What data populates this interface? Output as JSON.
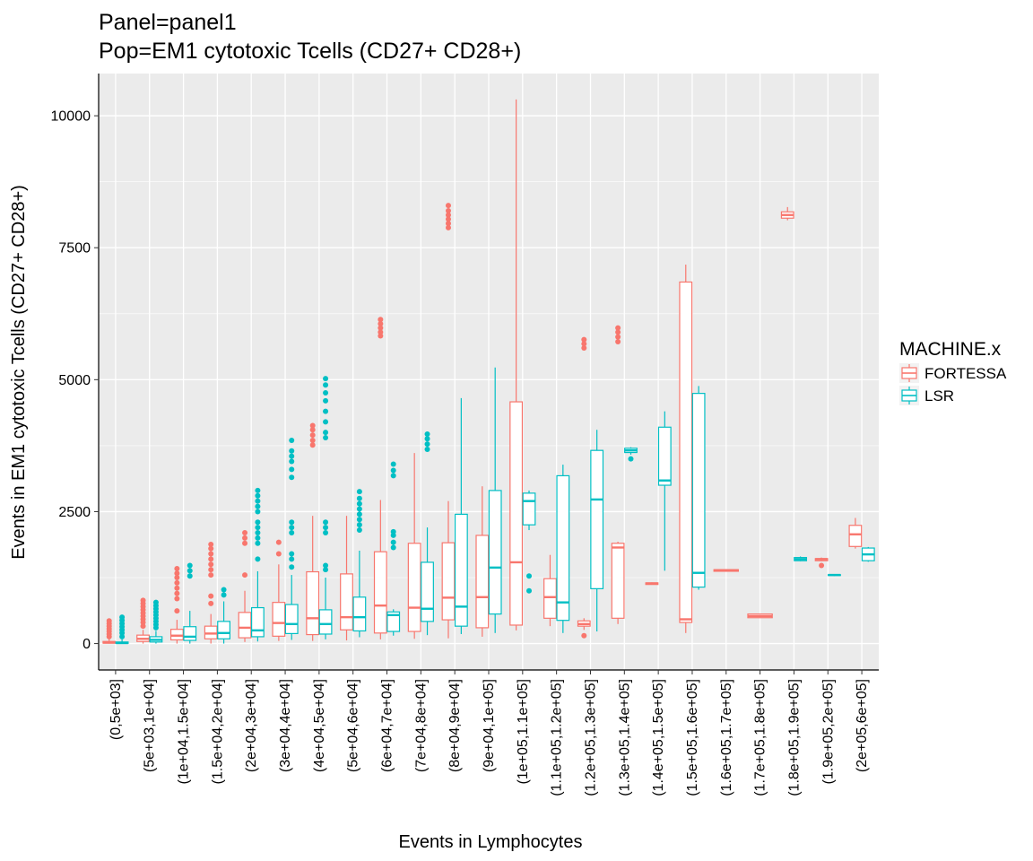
{
  "chart_data": {
    "type": "boxplot",
    "title_line1": "Panel=panel1",
    "title_line2": "Pop=EM1 cytotoxic Tcells (CD27+  CD28+)",
    "xlabel": "Events in Lymphocytes",
    "ylabel": "Events in EM1 cytotoxic Tcells (CD27+  CD28+)",
    "ylim": [
      -500,
      10800
    ],
    "yticks": [
      0,
      2500,
      5000,
      7500,
      10000
    ],
    "ytick_labels": [
      "0",
      "2500",
      "5000",
      "7500",
      "10000"
    ],
    "grid": true,
    "legend_position": "right",
    "legend_title": "MACHINE.x",
    "categories": [
      "(0,5e+03]",
      "(5e+03,1e+04]",
      "(1e+04,1.5e+04]",
      "(1.5e+04,2e+04]",
      "(2e+04,3e+04]",
      "(3e+04,4e+04]",
      "(4e+04,5e+04]",
      "(5e+04,6e+04]",
      "(6e+04,7e+04]",
      "(7e+04,8e+04]",
      "(8e+04,9e+04]",
      "(9e+04,1e+05]",
      "(1e+05,1.1e+05]",
      "(1.1e+05,1.2e+05]",
      "(1.2e+05,1.3e+05]",
      "(1.3e+05,1.4e+05]",
      "(1.4e+05,1.5e+05]",
      "(1.5e+05,1.6e+05]",
      "(1.6e+05,1.7e+05]",
      "(1.7e+05,1.8e+05]",
      "(1.8e+05,1.9e+05]",
      "(1.9e+05,2e+05]",
      "(2e+05,6e+05]"
    ],
    "series": [
      {
        "name": "FORTESSA",
        "color": "#F8766D",
        "boxes": [
          {
            "cat": 0,
            "min": 0,
            "q1": 8,
            "median": 18,
            "q3": 40,
            "max": 90,
            "outliers": [
              130,
              180,
              230,
              280,
              330,
              380,
              430
            ]
          },
          {
            "cat": 1,
            "min": 0,
            "q1": 40,
            "median": 90,
            "q3": 160,
            "max": 260,
            "outliers": [
              330,
              400,
              460,
              520,
              580,
              640,
              700,
              760,
              820
            ]
          },
          {
            "cat": 2,
            "min": 0,
            "q1": 70,
            "median": 150,
            "q3": 270,
            "max": 450,
            "outliers": [
              620,
              850,
              950,
              1050,
              1150,
              1250,
              1330,
              1420
            ]
          },
          {
            "cat": 3,
            "min": 0,
            "q1": 90,
            "median": 190,
            "q3": 330,
            "max": 560,
            "outliers": [
              760,
              900,
              1300,
              1400,
              1500,
              1600,
              1700,
              1800,
              1880
            ]
          },
          {
            "cat": 4,
            "min": 30,
            "q1": 110,
            "median": 300,
            "q3": 590,
            "max": 1000,
            "outliers": [
              1300,
              1900,
              2000,
              2100
            ]
          },
          {
            "cat": 5,
            "min": 50,
            "q1": 140,
            "median": 390,
            "q3": 780,
            "max": 1500,
            "outliers": [
              1700,
              1920
            ]
          },
          {
            "cat": 6,
            "min": 50,
            "q1": 170,
            "median": 480,
            "q3": 1360,
            "max": 2420,
            "outliers": [
              3760,
              3850,
              3950,
              4050,
              4130
            ]
          },
          {
            "cat": 7,
            "min": 60,
            "q1": 260,
            "median": 500,
            "q3": 1320,
            "max": 2420,
            "outliers": []
          },
          {
            "cat": 8,
            "min": 80,
            "q1": 200,
            "median": 720,
            "q3": 1740,
            "max": 2720,
            "outliers": [
              5830,
              5900,
              5980,
              6060,
              6140
            ]
          },
          {
            "cat": 9,
            "min": 90,
            "q1": 230,
            "median": 680,
            "q3": 1900,
            "max": 3610,
            "outliers": []
          },
          {
            "cat": 10,
            "min": 100,
            "q1": 450,
            "median": 870,
            "q3": 1910,
            "max": 2700,
            "outliers": [
              7880,
              7960,
              8040,
              8120,
              8200,
              8300
            ]
          },
          {
            "cat": 11,
            "min": 130,
            "q1": 300,
            "median": 880,
            "q3": 2050,
            "max": 2980,
            "outliers": []
          },
          {
            "cat": 12,
            "min": 250,
            "q1": 350,
            "median": 1540,
            "q3": 4580,
            "max": 10310,
            "outliers": []
          },
          {
            "cat": 13,
            "min": 330,
            "q1": 480,
            "median": 880,
            "q3": 1230,
            "max": 1680,
            "outliers": []
          },
          {
            "cat": 14,
            "min": 260,
            "q1": 330,
            "median": 370,
            "q3": 430,
            "max": 480,
            "outliers": [
              150,
              5600,
              5680,
              5760
            ]
          },
          {
            "cat": 15,
            "min": 370,
            "q1": 480,
            "median": 1820,
            "q3": 1900,
            "max": 1930,
            "outliers": [
              5720,
              5810,
              5900,
              5980
            ]
          },
          {
            "cat": 16,
            "min": 1120,
            "q1": 1120,
            "median": 1140,
            "q3": 1150,
            "max": 1160,
            "outliers": []
          },
          {
            "cat": 17,
            "min": 200,
            "q1": 400,
            "median": 460,
            "q3": 6850,
            "max": 7180,
            "outliers": []
          },
          {
            "cat": 18,
            "min": 1370,
            "q1": 1370,
            "median": 1390,
            "q3": 1400,
            "max": 1410,
            "outliers": []
          },
          {
            "cat": 19,
            "min": 490,
            "q1": 490,
            "median": 520,
            "q3": 560,
            "max": 570,
            "outliers": []
          },
          {
            "cat": 20,
            "min": 8020,
            "q1": 8060,
            "median": 8120,
            "q3": 8180,
            "max": 8270,
            "outliers": []
          },
          {
            "cat": 21,
            "min": 1560,
            "q1": 1570,
            "median": 1600,
            "q3": 1610,
            "max": 1630,
            "outliers": [
              1480
            ]
          },
          {
            "cat": 22,
            "min": 1800,
            "q1": 1840,
            "median": 2070,
            "q3": 2240,
            "max": 2380,
            "outliers": []
          }
        ]
      },
      {
        "name": "LSR",
        "color": "#00BFC4",
        "boxes": [
          {
            "cat": 0,
            "min": 0,
            "q1": 4,
            "median": 10,
            "q3": 30,
            "max": 80,
            "outliers": [
              130,
              200,
              260,
              320,
              380,
              440,
              500
            ]
          },
          {
            "cat": 1,
            "min": 0,
            "q1": 30,
            "median": 70,
            "q3": 130,
            "max": 240,
            "outliers": [
              300,
              360,
              420,
              480,
              540,
              600,
              660,
              720,
              780
            ]
          },
          {
            "cat": 2,
            "min": 0,
            "q1": 60,
            "median": 130,
            "q3": 320,
            "max": 620,
            "outliers": [
              1280,
              1380,
              1480
            ]
          },
          {
            "cat": 3,
            "min": 0,
            "q1": 90,
            "median": 200,
            "q3": 420,
            "max": 800,
            "outliers": [
              920,
              1020
            ]
          },
          {
            "cat": 4,
            "min": 40,
            "q1": 130,
            "median": 250,
            "q3": 680,
            "max": 1370,
            "outliers": [
              1600,
              1900,
              2000,
              2100,
              2200,
              2300,
              2500,
              2600,
              2700,
              2800,
              2900
            ]
          },
          {
            "cat": 5,
            "min": 70,
            "q1": 190,
            "median": 370,
            "q3": 740,
            "max": 1300,
            "outliers": [
              1450,
              1600,
              1700,
              2100,
              2200,
              2300,
              3150,
              3300,
              3450,
              3550,
              3650,
              3850
            ]
          },
          {
            "cat": 6,
            "min": 80,
            "q1": 180,
            "median": 370,
            "q3": 640,
            "max": 1250,
            "outliers": [
              1400,
              1480,
              2100,
              2200,
              2300,
              3900,
              4000,
              4200,
              4400,
              4600,
              4750,
              4900,
              5020
            ]
          },
          {
            "cat": 7,
            "min": 120,
            "q1": 240,
            "median": 500,
            "q3": 880,
            "max": 1760,
            "outliers": [
              2150,
              2250,
              2350,
              2450,
              2550,
              2650,
              2750,
              2880
            ]
          },
          {
            "cat": 8,
            "min": 150,
            "q1": 230,
            "median": 540,
            "q3": 600,
            "max": 650,
            "outliers": [
              1820,
              1920,
              2050,
              2120,
              3180,
              3280,
              3400
            ]
          },
          {
            "cat": 9,
            "min": 160,
            "q1": 420,
            "median": 660,
            "q3": 1540,
            "max": 2200,
            "outliers": [
              3680,
              3780,
              3880,
              3970
            ]
          },
          {
            "cat": 10,
            "min": 180,
            "q1": 330,
            "median": 700,
            "q3": 2450,
            "max": 4650,
            "outliers": []
          },
          {
            "cat": 11,
            "min": 200,
            "q1": 560,
            "median": 1440,
            "q3": 2900,
            "max": 5230,
            "outliers": []
          },
          {
            "cat": 12,
            "min": 2150,
            "q1": 2250,
            "median": 2700,
            "q3": 2850,
            "max": 2900,
            "outliers": [
              1000,
              1280
            ]
          },
          {
            "cat": 13,
            "min": 200,
            "q1": 440,
            "median": 780,
            "q3": 3180,
            "max": 3390,
            "outliers": []
          },
          {
            "cat": 14,
            "min": 230,
            "q1": 1040,
            "median": 2730,
            "q3": 3660,
            "max": 4050,
            "outliers": []
          },
          {
            "cat": 15,
            "min": 3580,
            "q1": 3620,
            "median": 3660,
            "q3": 3700,
            "max": 3720,
            "outliers": [
              3500
            ]
          },
          {
            "cat": 16,
            "min": 1380,
            "q1": 3000,
            "median": 3090,
            "q3": 4100,
            "max": 4400,
            "outliers": []
          },
          {
            "cat": 17,
            "min": 1020,
            "q1": 1070,
            "median": 1340,
            "q3": 4740,
            "max": 4880,
            "outliers": []
          },
          {
            "cat": 20,
            "min": 1560,
            "q1": 1570,
            "median": 1600,
            "q3": 1630,
            "max": 1650,
            "outliers": []
          },
          {
            "cat": 21,
            "min": 1280,
            "q1": 1290,
            "median": 1300,
            "q3": 1305,
            "max": 1310,
            "outliers": []
          },
          {
            "cat": 22,
            "min": 1550,
            "q1": 1570,
            "median": 1690,
            "q3": 1810,
            "max": 1830,
            "outliers": []
          }
        ]
      }
    ]
  }
}
